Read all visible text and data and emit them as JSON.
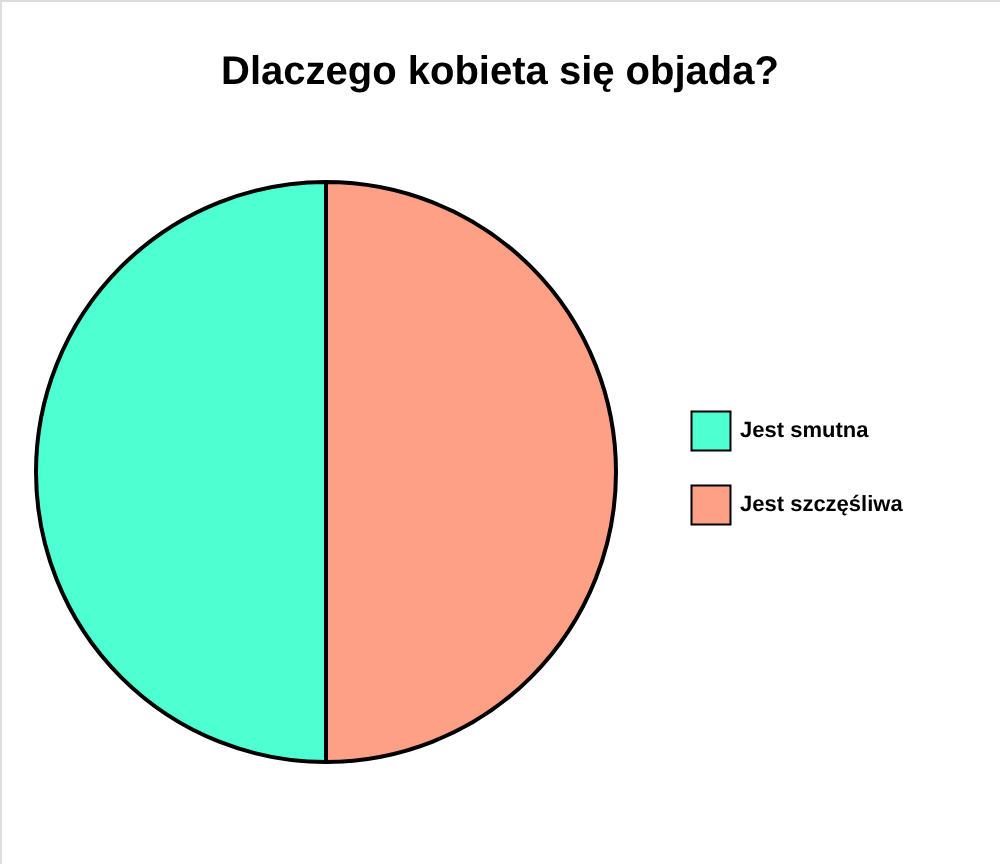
{
  "chart_data": {
    "type": "pie",
    "title": "Dlaczego kobieta się objada?",
    "categories": [
      "Jest smutna",
      "Jest szczęśliwa"
    ],
    "values": [
      50,
      50
    ],
    "colors": [
      "#4effd2",
      "#fda086"
    ],
    "legend": "right"
  }
}
